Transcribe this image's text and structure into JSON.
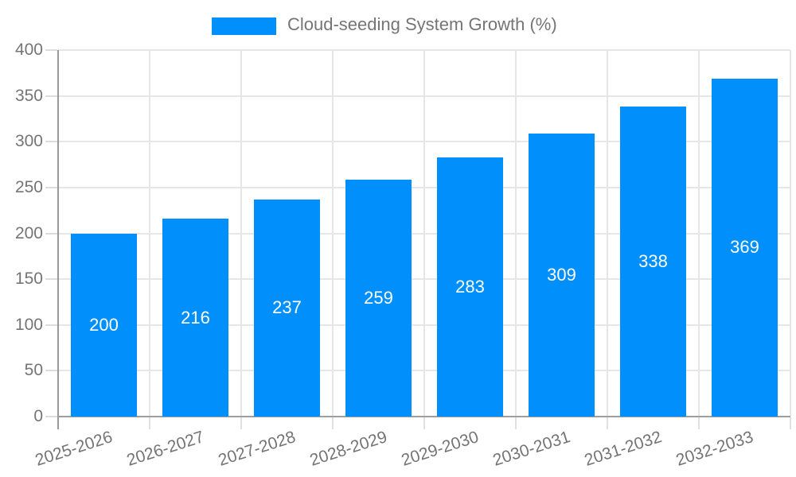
{
  "chart_data": {
    "type": "bar",
    "title": "",
    "legend": {
      "label": "Cloud-seeding System Growth (%)",
      "position": "top",
      "swatch_shape": "rectangle"
    },
    "categories": [
      "2025-2026",
      "2026-2027",
      "2027-2028",
      "2028-2029",
      "2029-2030",
      "2030-2031",
      "2031-2032",
      "2032-2033"
    ],
    "values": [
      200,
      216,
      237,
      259,
      283,
      309,
      338,
      369
    ],
    "data_labels": [
      "200",
      "216",
      "237",
      "259",
      "283",
      "309",
      "338",
      "369"
    ],
    "xlabel": "",
    "ylabel": "",
    "ylim": [
      0,
      400
    ],
    "yticks": [
      0,
      50,
      100,
      150,
      200,
      250,
      300,
      350,
      400
    ],
    "grid": "on",
    "colors": {
      "bar": "#008FFB",
      "gridline": "#e6e6e6",
      "axis_line": "#999999",
      "tick_text": "#757575",
      "legend_text": "#757575",
      "data_label_text": "#ffffff",
      "background": "#ffffff"
    }
  }
}
